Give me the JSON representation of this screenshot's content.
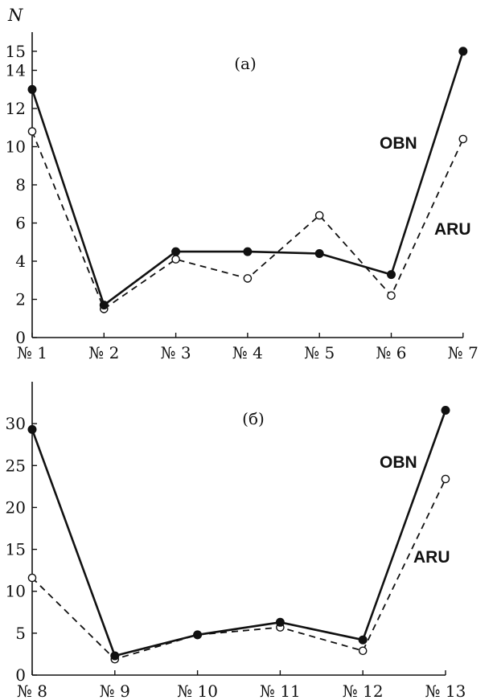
{
  "chart_data": [
    {
      "type": "line",
      "panel_label": "(a)",
      "ylabel": "N",
      "categories": [
        "№ 1",
        "№ 2",
        "№ 3",
        "№ 4",
        "№ 5",
        "№ 6",
        "№ 7"
      ],
      "ylim": [
        0,
        16
      ],
      "yticks": [
        0,
        2,
        4,
        6,
        8,
        10,
        12,
        14,
        15
      ],
      "ytick_labels": [
        "0",
        "2",
        "4",
        "6",
        "8",
        "10",
        "12",
        "14",
        "15"
      ],
      "grid": false,
      "series": [
        {
          "name": "OBN",
          "style": "solid",
          "marker": "filled-circle",
          "values": [
            13.0,
            1.7,
            4.5,
            4.5,
            4.4,
            3.3,
            15.0
          ]
        },
        {
          "name": "ARU",
          "style": "dashed",
          "marker": "open-circle",
          "values": [
            10.8,
            1.5,
            4.1,
            3.1,
            6.4,
            2.2,
            10.4
          ]
        }
      ]
    },
    {
      "type": "line",
      "panel_label": "(б)",
      "ylabel": "",
      "categories": [
        "№ 8",
        "№ 9",
        "№ 10",
        "№ 11",
        "№ 12",
        "№ 13"
      ],
      "ylim": [
        0,
        35
      ],
      "yticks": [
        0,
        5,
        10,
        15,
        20,
        25,
        30
      ],
      "ytick_labels": [
        "0",
        "5",
        "10",
        "15",
        "20",
        "25",
        "30"
      ],
      "grid": false,
      "series": [
        {
          "name": "OBN",
          "style": "solid",
          "marker": "filled-circle",
          "values": [
            29.3,
            2.3,
            4.8,
            6.3,
            4.2,
            31.6
          ]
        },
        {
          "name": "ARU",
          "style": "dashed",
          "marker": "open-circle",
          "values": [
            11.6,
            1.9,
            4.8,
            5.7,
            2.9,
            23.4
          ]
        }
      ]
    }
  ]
}
